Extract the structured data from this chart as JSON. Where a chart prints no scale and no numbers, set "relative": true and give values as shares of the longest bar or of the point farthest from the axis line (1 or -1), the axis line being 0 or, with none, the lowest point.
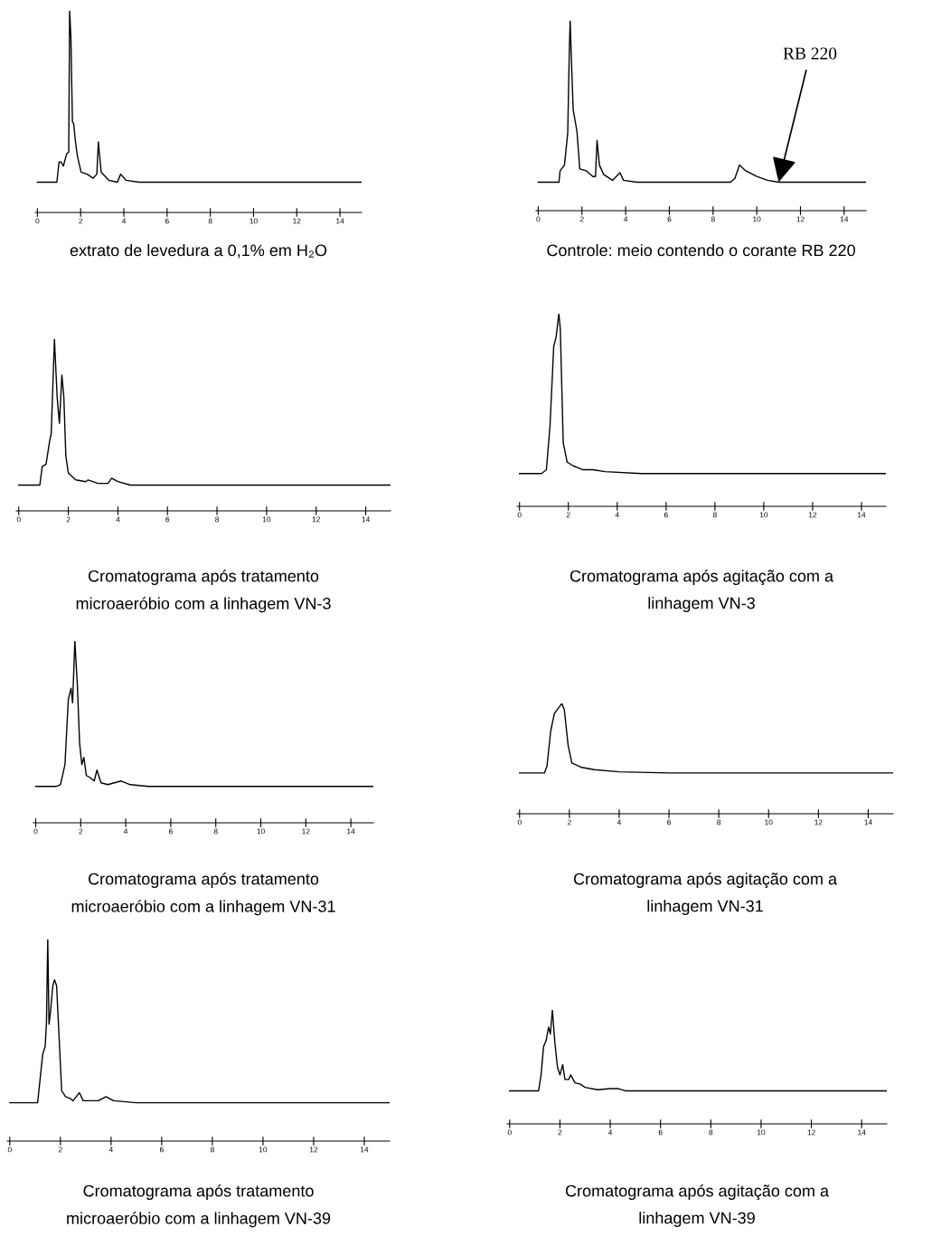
{
  "chart_data": [
    {
      "type": "line",
      "relative": true,
      "tick_labels": "x",
      "xlim": [
        -0.1,
        15
      ],
      "xticks": [
        0,
        2,
        4,
        6,
        8,
        10,
        12,
        14
      ],
      "x": [
        0,
        0.9,
        1.0,
        1.1,
        1.2,
        1.35,
        1.45,
        1.49,
        1.55,
        1.62,
        1.68,
        1.75,
        1.85,
        2.02,
        2.3,
        2.58,
        2.75,
        2.82,
        2.95,
        3.3,
        3.7,
        3.85,
        4.1,
        4.7,
        15
      ],
      "series": [
        {
          "color": "#000000",
          "values": [
            0.15,
            0.15,
            0.25,
            0.25,
            0.23,
            0.29,
            0.3,
            1,
            0.87,
            0.45,
            0.44,
            0.36,
            0.28,
            0.2,
            0.19,
            0.17,
            0.19,
            0.35,
            0.2,
            0.16,
            0.15,
            0.19,
            0.16,
            0.15,
            0.15
          ]
        }
      ],
      "annotations": [
        "extrato de levedura a 0,1% em H₂O"
      ]
    },
    {
      "type": "line",
      "relative": true,
      "tick_labels": "x",
      "xlim": [
        -0.1,
        15
      ],
      "xticks": [
        0,
        2,
        4,
        6,
        8,
        10,
        12,
        14
      ],
      "x": [
        0,
        0.95,
        1.0,
        1.2,
        1.35,
        1.42,
        1.46,
        1.52,
        1.6,
        1.77,
        1.9,
        2.2,
        2.5,
        2.62,
        2.69,
        2.8,
        3.0,
        3.4,
        3.74,
        3.9,
        4.5,
        8.8,
        9.0,
        9.21,
        9.5,
        10.0,
        10.5,
        11.0,
        15
      ],
      "series": [
        {
          "color": "#000000",
          "values": [
            0.15,
            0.15,
            0.21,
            0.24,
            0.41,
            0.83,
            1,
            0.79,
            0.53,
            0.42,
            0.22,
            0.21,
            0.18,
            0.18,
            0.37,
            0.24,
            0.19,
            0.16,
            0.2,
            0.16,
            0.15,
            0.15,
            0.17,
            0.24,
            0.21,
            0.18,
            0.16,
            0.15,
            0.15
          ]
        }
      ],
      "annotations": [
        {
          "text": "RB 220",
          "x": 11.0,
          "y": 0.15
        },
        "Controle: meio contendo o corante RB 220"
      ]
    },
    {
      "type": "line",
      "relative": true,
      "tick_labels": "x",
      "xlim": [
        -0.1,
        15
      ],
      "xticks": [
        0,
        2,
        4,
        6,
        8,
        10,
        12,
        14
      ],
      "x": [
        0,
        0.85,
        0.95,
        1.1,
        1.25,
        1.31,
        1.44,
        1.55,
        1.64,
        1.74,
        1.82,
        1.9,
        2.0,
        2.3,
        2.7,
        2.8,
        3.2,
        3.6,
        3.75,
        4.0,
        4.5,
        15
      ],
      "series": [
        {
          "color": "#000000",
          "values": [
            0.15,
            0.15,
            0.26,
            0.27,
            0.41,
            0.45,
            1,
            0.66,
            0.51,
            0.79,
            0.66,
            0.32,
            0.22,
            0.18,
            0.17,
            0.18,
            0.16,
            0.16,
            0.19,
            0.17,
            0.15,
            0.15
          ]
        }
      ],
      "annotations": [
        "Cromatograma após tratamento\nmicroaeróbio com a linhagem VN-3"
      ]
    },
    {
      "type": "line",
      "relative": true,
      "tick_labels": "x",
      "xlim": [
        -0.1,
        15
      ],
      "xticks": [
        0,
        2,
        4,
        6,
        8,
        10,
        12,
        14
      ],
      "x": [
        0,
        0.9,
        1.1,
        1.25,
        1.4,
        1.5,
        1.61,
        1.67,
        1.79,
        1.95,
        2.2,
        2.4,
        2.6,
        3.0,
        3.5,
        5.0,
        15
      ],
      "series": [
        {
          "color": "#000000",
          "values": [
            0.17,
            0.17,
            0.19,
            0.42,
            0.83,
            0.88,
            1,
            0.92,
            0.33,
            0.23,
            0.21,
            0.2,
            0.19,
            0.19,
            0.18,
            0.17,
            0.17
          ]
        }
      ],
      "annotations": [
        "Cromatograma após agitação com a\nlinhagem VN-3"
      ]
    },
    {
      "type": "line",
      "relative": true,
      "tick_labels": "x",
      "xlim": [
        -0.1,
        15
      ],
      "xticks": [
        0,
        2,
        4,
        6,
        8,
        10,
        12,
        14
      ],
      "x": [
        0,
        0.9,
        1.1,
        1.3,
        1.45,
        1.57,
        1.64,
        1.74,
        1.85,
        1.95,
        2.05,
        2.14,
        2.25,
        2.4,
        2.6,
        2.72,
        2.9,
        3.2,
        3.8,
        4.2,
        5,
        15
      ],
      "series": [
        {
          "color": "#000000",
          "values": [
            0.2,
            0.2,
            0.21,
            0.32,
            0.68,
            0.74,
            0.66,
            1,
            0.76,
            0.44,
            0.32,
            0.36,
            0.26,
            0.25,
            0.23,
            0.29,
            0.22,
            0.21,
            0.23,
            0.21,
            0.2,
            0.2
          ]
        }
      ],
      "annotations": [
        "Cromatograma após tratamento\nmicroaeróbio com a linhagem VN-31"
      ]
    },
    {
      "type": "line",
      "relative": true,
      "tick_labels": "x",
      "xlim": [
        -0.1,
        15
      ],
      "xticks": [
        0,
        2,
        4,
        6,
        8,
        10,
        12,
        14
      ],
      "x": [
        0,
        1.0,
        1.1,
        1.25,
        1.4,
        1.5,
        1.6,
        1.7,
        1.8,
        1.95,
        2.1,
        2.5,
        3.0,
        4.0,
        6.0,
        15
      ],
      "series": [
        {
          "color": "#000000",
          "values": [
            0.37,
            0.37,
            0.43,
            0.75,
            0.91,
            0.94,
            0.97,
            1,
            0.94,
            0.62,
            0.46,
            0.42,
            0.4,
            0.38,
            0.37,
            0.37
          ]
        }
      ],
      "annotations": [
        "Cromatograma após agitação com a\nlinhagem VN-31"
      ]
    },
    {
      "type": "line",
      "relative": true,
      "tick_labels": "x",
      "xlim": [
        -0.1,
        15
      ],
      "xticks": [
        0,
        2,
        4,
        6,
        8,
        10,
        12,
        14
      ],
      "x": [
        0,
        1.1,
        1.3,
        1.4,
        1.45,
        1.5,
        1.55,
        1.6,
        1.7,
        1.77,
        1.85,
        1.95,
        2.05,
        2.2,
        2.4,
        2.5,
        2.75,
        2.9,
        3.5,
        3.8,
        4.1,
        5,
        15
      ],
      "series": [
        {
          "color": "#000000",
          "values": [
            0.19,
            0.19,
            0.43,
            0.47,
            0.59,
            1,
            0.58,
            0.63,
            0.77,
            0.8,
            0.77,
            0.51,
            0.25,
            0.22,
            0.21,
            0.2,
            0.24,
            0.2,
            0.2,
            0.22,
            0.2,
            0.19,
            0.19
          ]
        }
      ],
      "annotations": [
        "Cromatograma após tratamento\nmicroaeróbio com a linhagem VN-39"
      ]
    },
    {
      "type": "line",
      "relative": true,
      "tick_labels": "x",
      "xlim": [
        -0.1,
        15
      ],
      "xticks": [
        0,
        2,
        4,
        6,
        8,
        10,
        12,
        14
      ],
      "x": [
        0,
        1.15,
        1.25,
        1.35,
        1.45,
        1.55,
        1.62,
        1.7,
        1.8,
        1.9,
        2.0,
        2.11,
        2.2,
        2.35,
        2.43,
        2.6,
        2.8,
        3.0,
        3.5,
        4.0,
        4.3,
        4.6,
        6,
        15
      ],
      "series": [
        {
          "color": "#000000",
          "values": [
            0.29,
            0.29,
            0.43,
            0.68,
            0.73,
            0.85,
            0.79,
            1,
            0.71,
            0.5,
            0.43,
            0.52,
            0.39,
            0.39,
            0.43,
            0.36,
            0.35,
            0.32,
            0.3,
            0.31,
            0.31,
            0.29,
            0.29,
            0.29
          ]
        }
      ],
      "annotations": [
        "Cromatograma após agitação com a\nlinhagem VN-39"
      ]
    }
  ]
}
